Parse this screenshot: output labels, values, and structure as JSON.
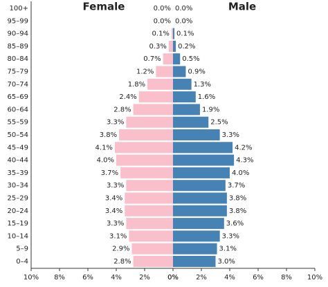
{
  "chart_data": {
    "type": "pyramid",
    "categories": [
      "100+",
      "95–99",
      "90–94",
      "85–89",
      "80–84",
      "75–79",
      "70–74",
      "65–69",
      "60–64",
      "55–59",
      "50–54",
      "45–49",
      "40–44",
      "35–39",
      "30–34",
      "25–29",
      "20–24",
      "15–19",
      "10–14",
      "5–9",
      "0–4"
    ],
    "series": [
      {
        "name": "Female",
        "color": "#f9bfcb",
        "side": "left",
        "values": [
          0.0,
          0.0,
          0.1,
          0.3,
          0.7,
          1.2,
          1.8,
          2.4,
          2.8,
          3.3,
          3.8,
          4.1,
          4.0,
          3.7,
          3.3,
          3.4,
          3.4,
          3.3,
          3.1,
          2.9,
          2.8
        ],
        "value_labels": [
          "0.0%",
          "0.0%",
          "0.1%",
          "0.3%",
          "0.7%",
          "1.2%",
          "1.8%",
          "2.4%",
          "2.8%",
          "3.3%",
          "3.8%",
          "4.1%",
          "4.0%",
          "3.7%",
          "3.3%",
          "3.4%",
          "3.4%",
          "3.3%",
          "3.1%",
          "2.9%",
          "2.8%"
        ]
      },
      {
        "name": "Male",
        "color": "#4682b4",
        "side": "right",
        "values": [
          0.0,
          0.0,
          0.1,
          0.2,
          0.5,
          0.9,
          1.3,
          1.6,
          1.9,
          2.5,
          3.3,
          4.2,
          4.3,
          4.0,
          3.7,
          3.8,
          3.8,
          3.6,
          3.3,
          3.1,
          3.0
        ],
        "value_labels": [
          "0.0%",
          "0.0%",
          "0.1%",
          "0.2%",
          "0.5%",
          "0.9%",
          "1.3%",
          "1.6%",
          "1.9%",
          "2.5%",
          "3.3%",
          "4.2%",
          "4.3%",
          "4.0%",
          "3.7%",
          "3.8%",
          "3.8%",
          "3.6%",
          "3.3%",
          "3.1%",
          "3.0%"
        ]
      }
    ],
    "xlim": [
      0,
      10
    ],
    "xticks": [
      {
        "value": 0,
        "label": "0%"
      },
      {
        "value": 2,
        "label": "2%"
      },
      {
        "value": 4,
        "label": "4%"
      },
      {
        "value": 6,
        "label": "6%"
      },
      {
        "value": 8,
        "label": "8%"
      },
      {
        "value": 10,
        "label": "10%"
      }
    ]
  }
}
